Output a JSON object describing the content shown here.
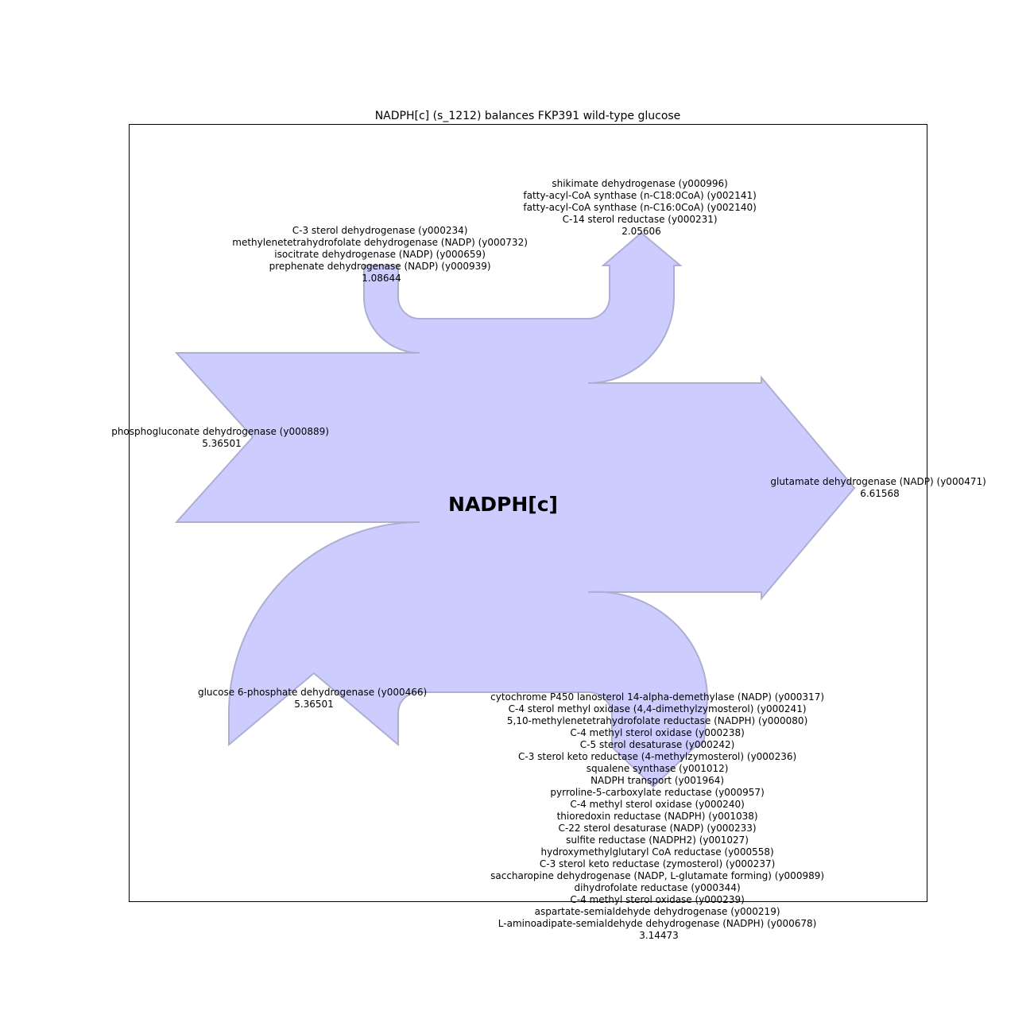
{
  "title": "NADPH[c] (s_1212) balances FKP391 wild-type glucose",
  "center_label": "NADPH[c]",
  "colors": {
    "flow_fill": "#ccccff",
    "flow_edge": "#aeaed2",
    "frame": "#000000"
  },
  "flows": {
    "top_left": {
      "lines": [
        "C-3 sterol dehydrogenase (y000234)",
        "methylenetetrahydrofolate dehydrogenase (NADP) (y000732)",
        "isocitrate dehydrogenase (NADP) (y000659)",
        "prephenate dehydrogenase (NADP) (y000939)"
      ],
      "value": "1.08644"
    },
    "top_right": {
      "lines": [
        "shikimate dehydrogenase (y000996)",
        "fatty-acyl-CoA synthase (n-C18:0CoA) (y002141)",
        "fatty-acyl-CoA synthase (n-C16:0CoA) (y002140)",
        "C-14 sterol reductase (y000231)"
      ],
      "value": "2.05606"
    },
    "left": {
      "lines": [
        "phosphogluconate dehydrogenase (y000889)"
      ],
      "value": "5.36501"
    },
    "right": {
      "lines": [
        "glutamate dehydrogenase (NADP) (y000471)"
      ],
      "value": "6.61568"
    },
    "bottom_left": {
      "lines": [
        "glucose 6-phosphate dehydrogenase (y000466)"
      ],
      "value": "5.36501"
    },
    "bottom_right": {
      "lines": [
        "cytochrome P450 lanosterol 14-alpha-demethylase (NADP) (y000317)",
        "C-4 sterol methyl oxidase (4,4-dimethylzymosterol) (y000241)",
        "5,10-methylenetetrahydrofolate reductase (NADPH) (y000080)",
        "C-4 methyl sterol oxidase (y000238)",
        "C-5 sterol desaturase (y000242)",
        "C-3 sterol keto reductase (4-methylzymosterol) (y000236)",
        "squalene synthase (y001012)",
        "NADPH transport (y001964)",
        "pyrroline-5-carboxylate reductase (y000957)",
        "C-4 methyl sterol oxidase (y000240)",
        "thioredoxin reductase (NADPH) (y001038)",
        "C-22 sterol desaturase (NADP) (y000233)",
        "sulfite reductase (NADPH2) (y001027)",
        "hydroxymethylglutaryl CoA reductase (y000558)",
        "C-3 sterol keto reductase (zymosterol) (y000237)",
        "saccharopine dehydrogenase (NADP, L-glutamate forming) (y000989)",
        "dihydrofolate reductase (y000344)",
        "C-4 methyl sterol oxidase (y000239)",
        "aspartate-semialdehyde dehydrogenase (y000219)",
        "L-aminoadipate-semialdehyde dehydrogenase (NADPH) (y000678)"
      ],
      "value": "3.14473"
    }
  }
}
